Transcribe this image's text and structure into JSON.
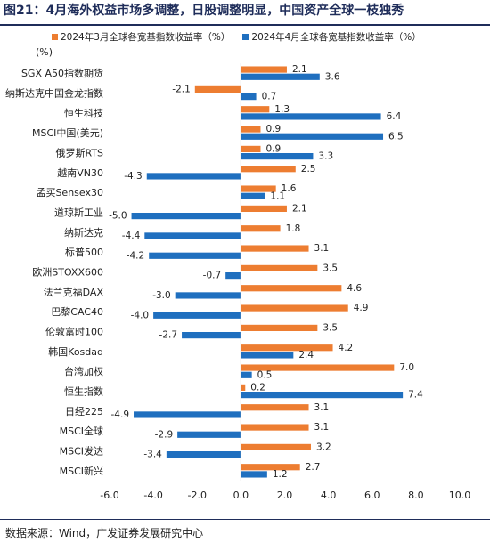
{
  "header": {
    "title": "图21：4月海外权益市场多调整，日股调整明显，中国资产全球一枝独秀"
  },
  "source": "数据来源：Wind，广发证券发展研究中心",
  "colors": {
    "series1": "#ed7d31",
    "series2": "#1f6fbf",
    "axis": "#bfbfbf",
    "title": "#1f2d5a"
  },
  "chart_data": {
    "type": "bar",
    "orientation": "horizontal",
    "unit_label": "(%)",
    "categories": [
      "SGX A50指数期货",
      "纳斯达克中国金龙指数",
      "恒生科技",
      "MSCI中国(美元)",
      "俄罗斯RTS",
      "越南VN30",
      "孟买Sensex30",
      "道琼斯工业",
      "纳斯达克",
      "标普500",
      "欧洲STOXX600",
      "法兰克福DAX",
      "巴黎CAC40",
      "伦敦富时100",
      "韩国Kosdaq",
      "台湾加权",
      "恒生指数",
      "日经225",
      "MSCI全球",
      "MSCI发达",
      "MSCI新兴"
    ],
    "series": [
      {
        "name": "2024年3月全球各宽基指数收益率（%）",
        "values": [
          2.1,
          -2.1,
          1.3,
          0.9,
          0.9,
          2.5,
          1.6,
          2.1,
          1.8,
          3.1,
          3.5,
          4.6,
          4.9,
          3.5,
          4.2,
          7.0,
          0.2,
          3.1,
          3.1,
          3.2,
          2.7
        ]
      },
      {
        "name": "2024年4月全球各宽基指数收益率（%）",
        "values": [
          3.6,
          0.7,
          6.4,
          6.5,
          3.3,
          -4.3,
          1.1,
          -5.0,
          -4.4,
          -4.2,
          -0.7,
          -3.0,
          -4.0,
          -2.7,
          2.4,
          0.5,
          7.4,
          -4.9,
          -2.9,
          -3.4,
          1.2
        ]
      }
    ],
    "xlim": [
      -6.0,
      10.0
    ],
    "ticks": [
      "-6.0",
      "-4.0",
      "-2.0",
      "0.0",
      "2.0",
      "4.0",
      "6.0",
      "8.0",
      "10.0"
    ],
    "grid": false,
    "legend_position": "top"
  }
}
